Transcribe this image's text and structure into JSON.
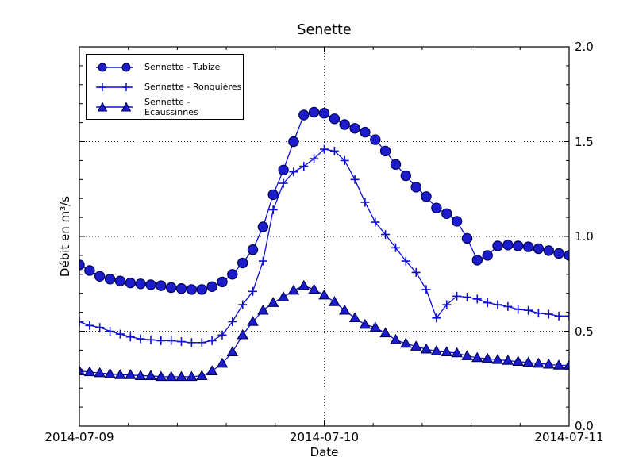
{
  "chart_data": {
    "type": "line",
    "title": "Senette",
    "xlabel": "Date",
    "ylabel": "Débit en m³/s",
    "x_tick_labels": [
      "2014-07-09",
      "2014-07-10",
      "2014-07-11"
    ],
    "y_tick_labels": [
      "0.0",
      "0.5",
      "1.0",
      "1.5",
      "2.0"
    ],
    "ylim": [
      0,
      2
    ],
    "x_hours_span": 48,
    "sample_interval_hours": 1,
    "x_major_hours": [
      0,
      24,
      48
    ],
    "x_gridlines_hours": [
      24
    ],
    "y_gridlines": [
      0.5,
      1.0,
      1.5
    ],
    "y_major_ticks": [
      0,
      0.5,
      1,
      1.5,
      2
    ],
    "y_minor_step": 0.1,
    "x_minor_divisions": 10,
    "grid": true,
    "legend_position": "upper-left",
    "colors": {
      "line": "#0d0dd6",
      "marker_fill": "#1c1ccd",
      "marker_edge": "#000050",
      "grid": "#333333"
    },
    "series": [
      {
        "name": "Sennette - Tubize",
        "marker": "circle",
        "values": [
          0.85,
          0.82,
          0.79,
          0.775,
          0.765,
          0.755,
          0.75,
          0.745,
          0.74,
          0.73,
          0.725,
          0.72,
          0.72,
          0.735,
          0.76,
          0.8,
          0.86,
          0.93,
          1.05,
          1.22,
          1.35,
          1.5,
          1.64,
          1.655,
          1.65,
          1.62,
          1.59,
          1.57,
          1.55,
          1.51,
          1.45,
          1.38,
          1.32,
          1.26,
          1.21,
          1.15,
          1.12,
          1.08,
          0.99,
          0.875,
          0.9,
          0.95,
          0.955,
          0.95,
          0.945,
          0.935,
          0.925,
          0.91,
          0.9
        ]
      },
      {
        "name": "Sennette - Ronquières",
        "marker": "plus",
        "values": [
          0.55,
          0.53,
          0.52,
          0.5,
          0.485,
          0.47,
          0.46,
          0.455,
          0.45,
          0.45,
          0.445,
          0.44,
          0.44,
          0.45,
          0.48,
          0.55,
          0.64,
          0.71,
          0.87,
          1.14,
          1.28,
          1.34,
          1.37,
          1.41,
          1.46,
          1.45,
          1.4,
          1.3,
          1.18,
          1.075,
          1.01,
          0.94,
          0.87,
          0.81,
          0.72,
          0.57,
          0.64,
          0.685,
          0.68,
          0.67,
          0.65,
          0.64,
          0.63,
          0.615,
          0.61,
          0.595,
          0.59,
          0.58,
          0.58
        ]
      },
      {
        "name": "Sennette - Ecaussinnes",
        "marker": "triangle",
        "values": [
          0.29,
          0.285,
          0.28,
          0.275,
          0.27,
          0.27,
          0.265,
          0.265,
          0.26,
          0.26,
          0.26,
          0.26,
          0.265,
          0.29,
          0.33,
          0.39,
          0.48,
          0.55,
          0.61,
          0.65,
          0.68,
          0.715,
          0.74,
          0.72,
          0.69,
          0.655,
          0.61,
          0.57,
          0.535,
          0.52,
          0.49,
          0.455,
          0.435,
          0.42,
          0.405,
          0.395,
          0.39,
          0.385,
          0.37,
          0.36,
          0.355,
          0.35,
          0.345,
          0.34,
          0.335,
          0.33,
          0.325,
          0.32,
          0.32
        ]
      }
    ]
  }
}
